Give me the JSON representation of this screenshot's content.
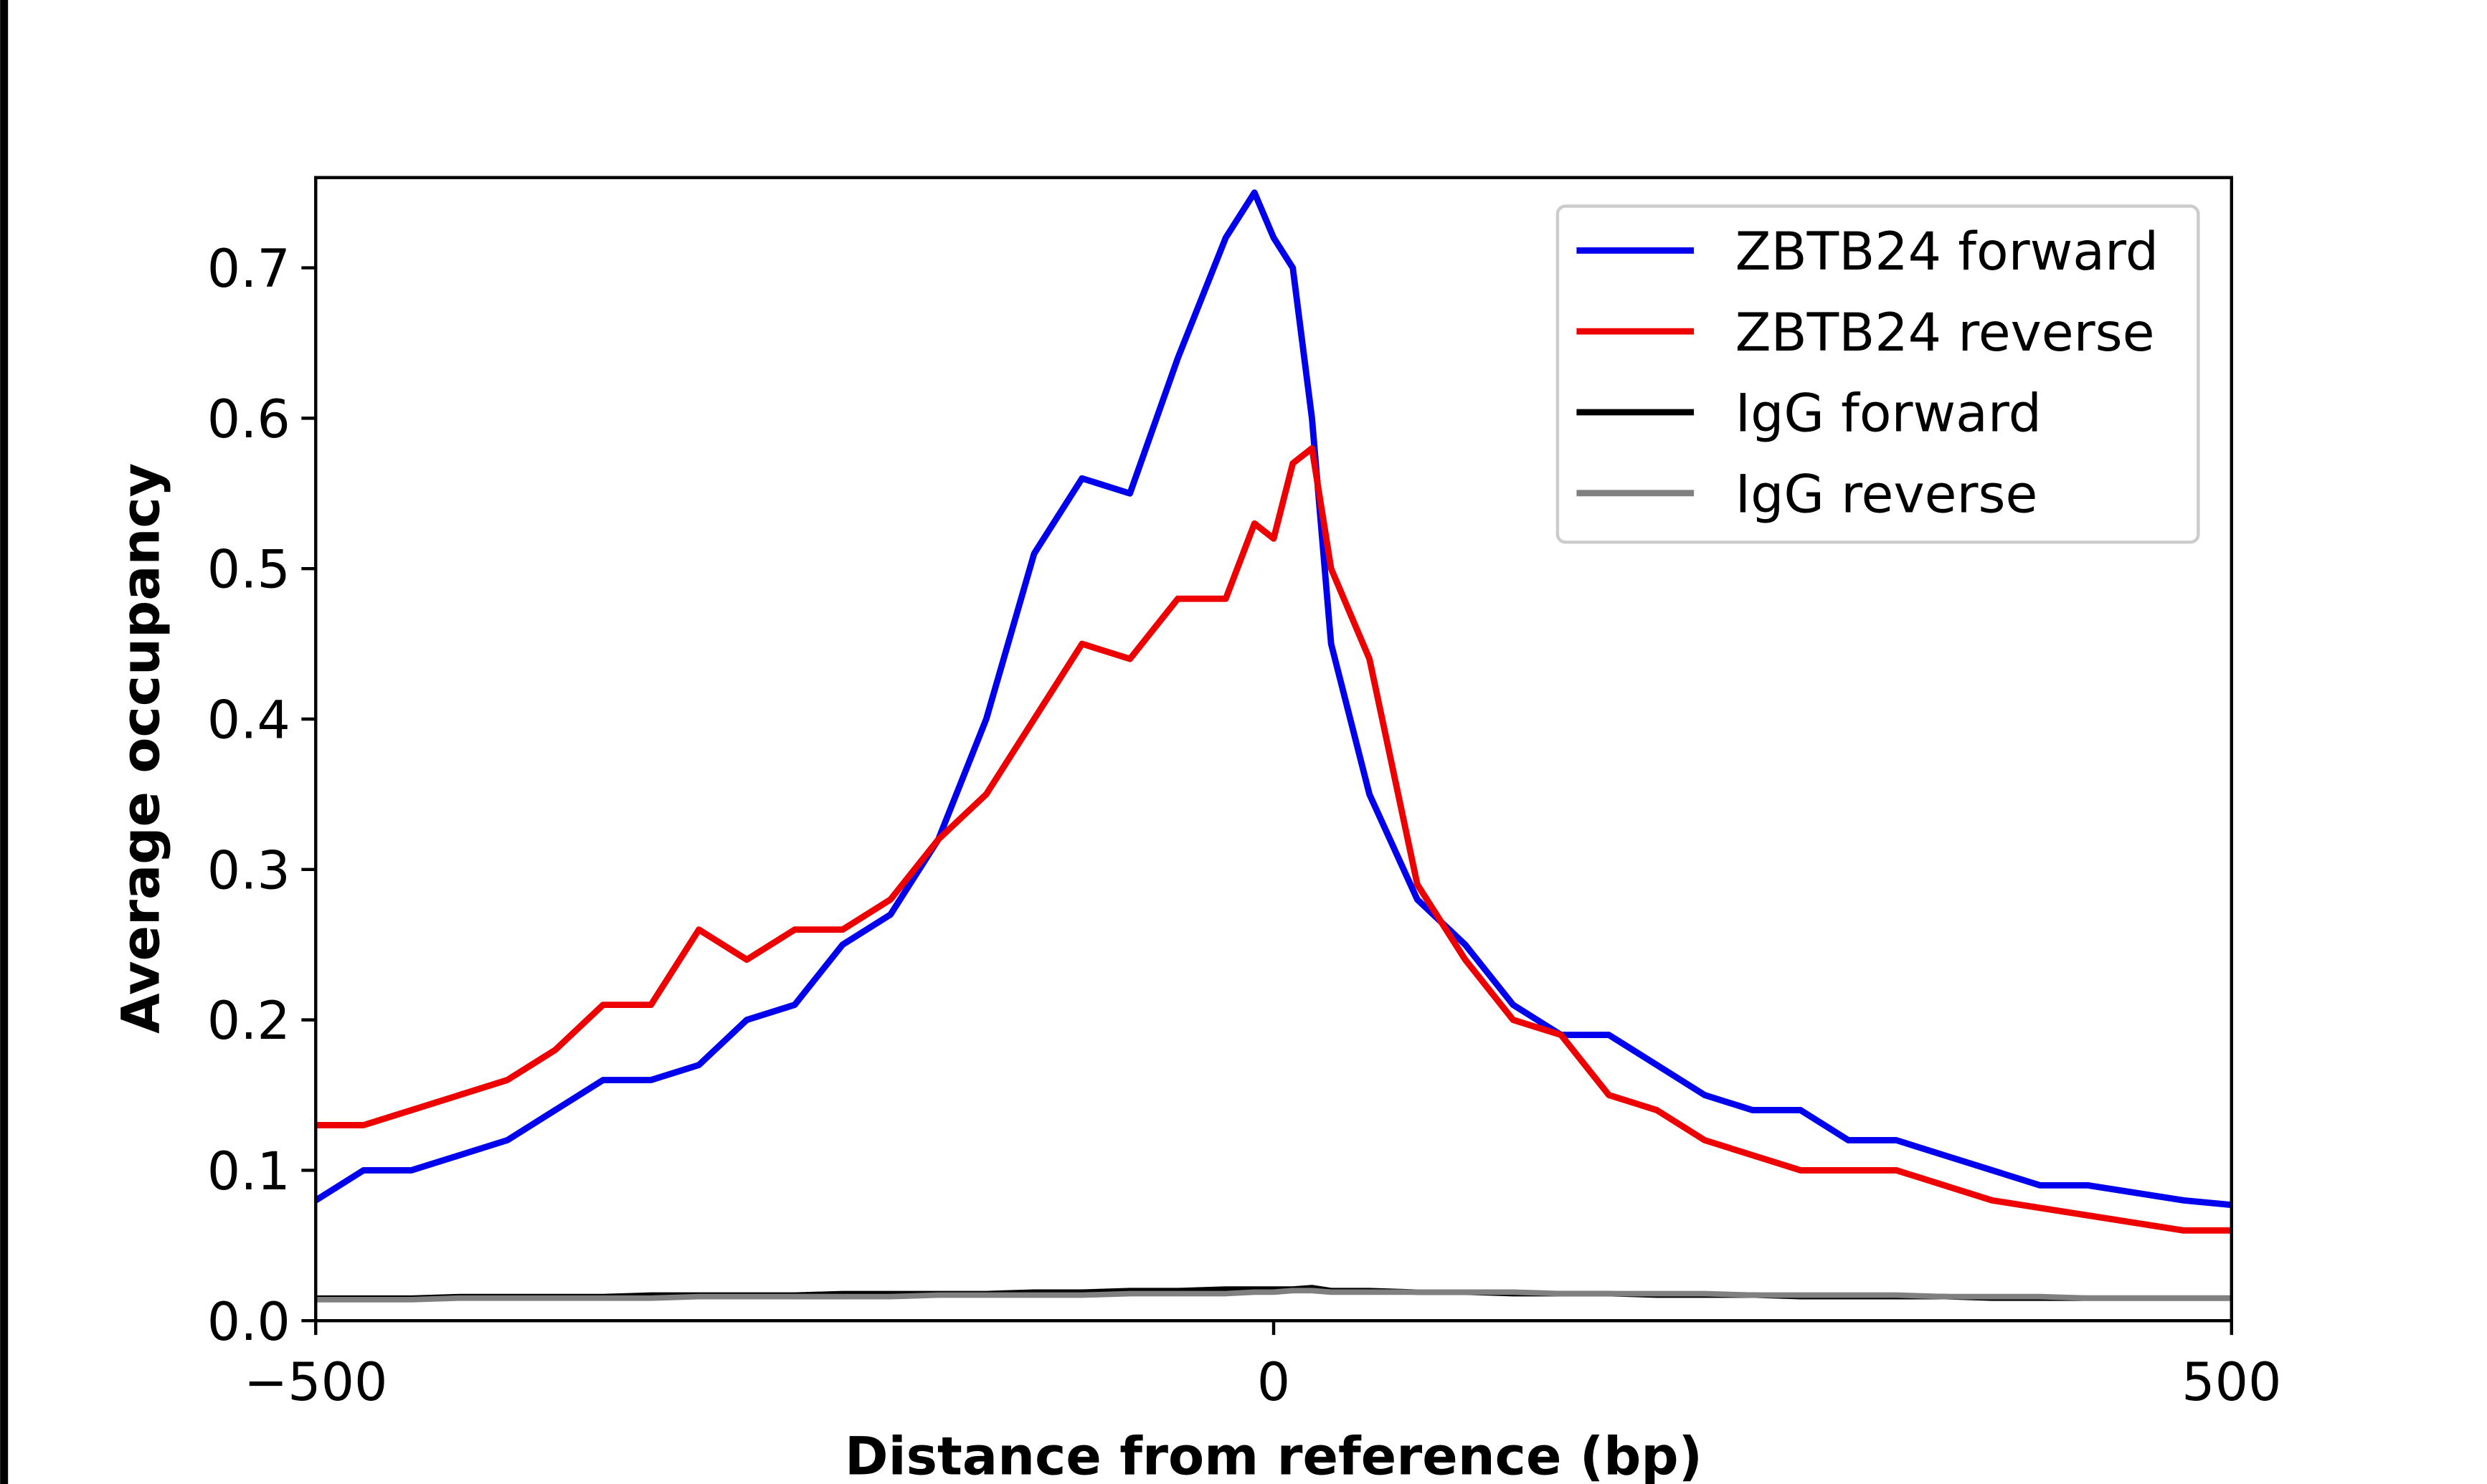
{
  "chart_data": {
    "type": "line",
    "x_label": "Distance from reference (bp)",
    "y_label": "Average occupancy",
    "x": [
      -500,
      -475,
      -450,
      -425,
      -400,
      -375,
      -350,
      -325,
      -300,
      -275,
      -250,
      -225,
      -200,
      -175,
      -150,
      -125,
      -100,
      -75,
      -50,
      -25,
      -10,
      0,
      10,
      20,
      30,
      50,
      75,
      100,
      125,
      150,
      175,
      200,
      225,
      250,
      275,
      300,
      325,
      350,
      375,
      400,
      425,
      450,
      475,
      500
    ],
    "series": [
      {
        "name": "ZBTB24 forward",
        "color": "#0000ee",
        "values": [
          0.08,
          0.1,
          0.1,
          0.11,
          0.12,
          0.14,
          0.16,
          0.16,
          0.17,
          0.2,
          0.21,
          0.25,
          0.27,
          0.32,
          0.4,
          0.51,
          0.56,
          0.55,
          0.64,
          0.72,
          0.75,
          0.72,
          0.7,
          0.6,
          0.45,
          0.35,
          0.28,
          0.25,
          0.21,
          0.19,
          0.19,
          0.17,
          0.15,
          0.14,
          0.14,
          0.12,
          0.12,
          0.11,
          0.1,
          0.09,
          0.09,
          0.085,
          0.08,
          0.077
        ]
      },
      {
        "name": "ZBTB24 reverse",
        "color": "#ee0000",
        "values": [
          0.13,
          0.13,
          0.14,
          0.15,
          0.16,
          0.18,
          0.21,
          0.21,
          0.26,
          0.24,
          0.26,
          0.26,
          0.28,
          0.32,
          0.35,
          0.4,
          0.45,
          0.44,
          0.48,
          0.48,
          0.53,
          0.52,
          0.57,
          0.58,
          0.5,
          0.44,
          0.29,
          0.24,
          0.2,
          0.19,
          0.15,
          0.14,
          0.12,
          0.11,
          0.1,
          0.1,
          0.1,
          0.09,
          0.08,
          0.075,
          0.07,
          0.065,
          0.06,
          0.06
        ]
      },
      {
        "name": "IgG forward",
        "color": "#000000",
        "values": [
          0.015,
          0.015,
          0.015,
          0.016,
          0.016,
          0.016,
          0.016,
          0.017,
          0.017,
          0.017,
          0.017,
          0.018,
          0.018,
          0.018,
          0.018,
          0.019,
          0.019,
          0.02,
          0.02,
          0.021,
          0.021,
          0.021,
          0.021,
          0.022,
          0.02,
          0.02,
          0.019,
          0.019,
          0.018,
          0.018,
          0.018,
          0.017,
          0.017,
          0.017,
          0.016,
          0.016,
          0.016,
          0.016,
          0.015,
          0.015,
          0.015,
          0.015,
          0.015,
          0.015
        ]
      },
      {
        "name": "IgG reverse",
        "color": "#808080",
        "values": [
          0.014,
          0.014,
          0.014,
          0.015,
          0.015,
          0.015,
          0.015,
          0.015,
          0.016,
          0.016,
          0.016,
          0.016,
          0.016,
          0.017,
          0.017,
          0.017,
          0.017,
          0.018,
          0.018,
          0.018,
          0.019,
          0.019,
          0.02,
          0.02,
          0.019,
          0.019,
          0.019,
          0.019,
          0.019,
          0.018,
          0.018,
          0.018,
          0.018,
          0.017,
          0.017,
          0.017,
          0.017,
          0.016,
          0.016,
          0.016,
          0.015,
          0.015,
          0.015,
          0.015
        ]
      }
    ],
    "xlim": [
      -500,
      500
    ],
    "xticks": [
      {
        "value": -500,
        "label": "−500"
      },
      0,
      500
    ],
    "ylim": [
      0,
      0.76
    ],
    "yticks": [
      {
        "value": 0,
        "label": "0.0"
      },
      0.1,
      0.2,
      0.3,
      0.4,
      0.5,
      0.6,
      0.7
    ],
    "legend": "upper right",
    "grid": false
  }
}
